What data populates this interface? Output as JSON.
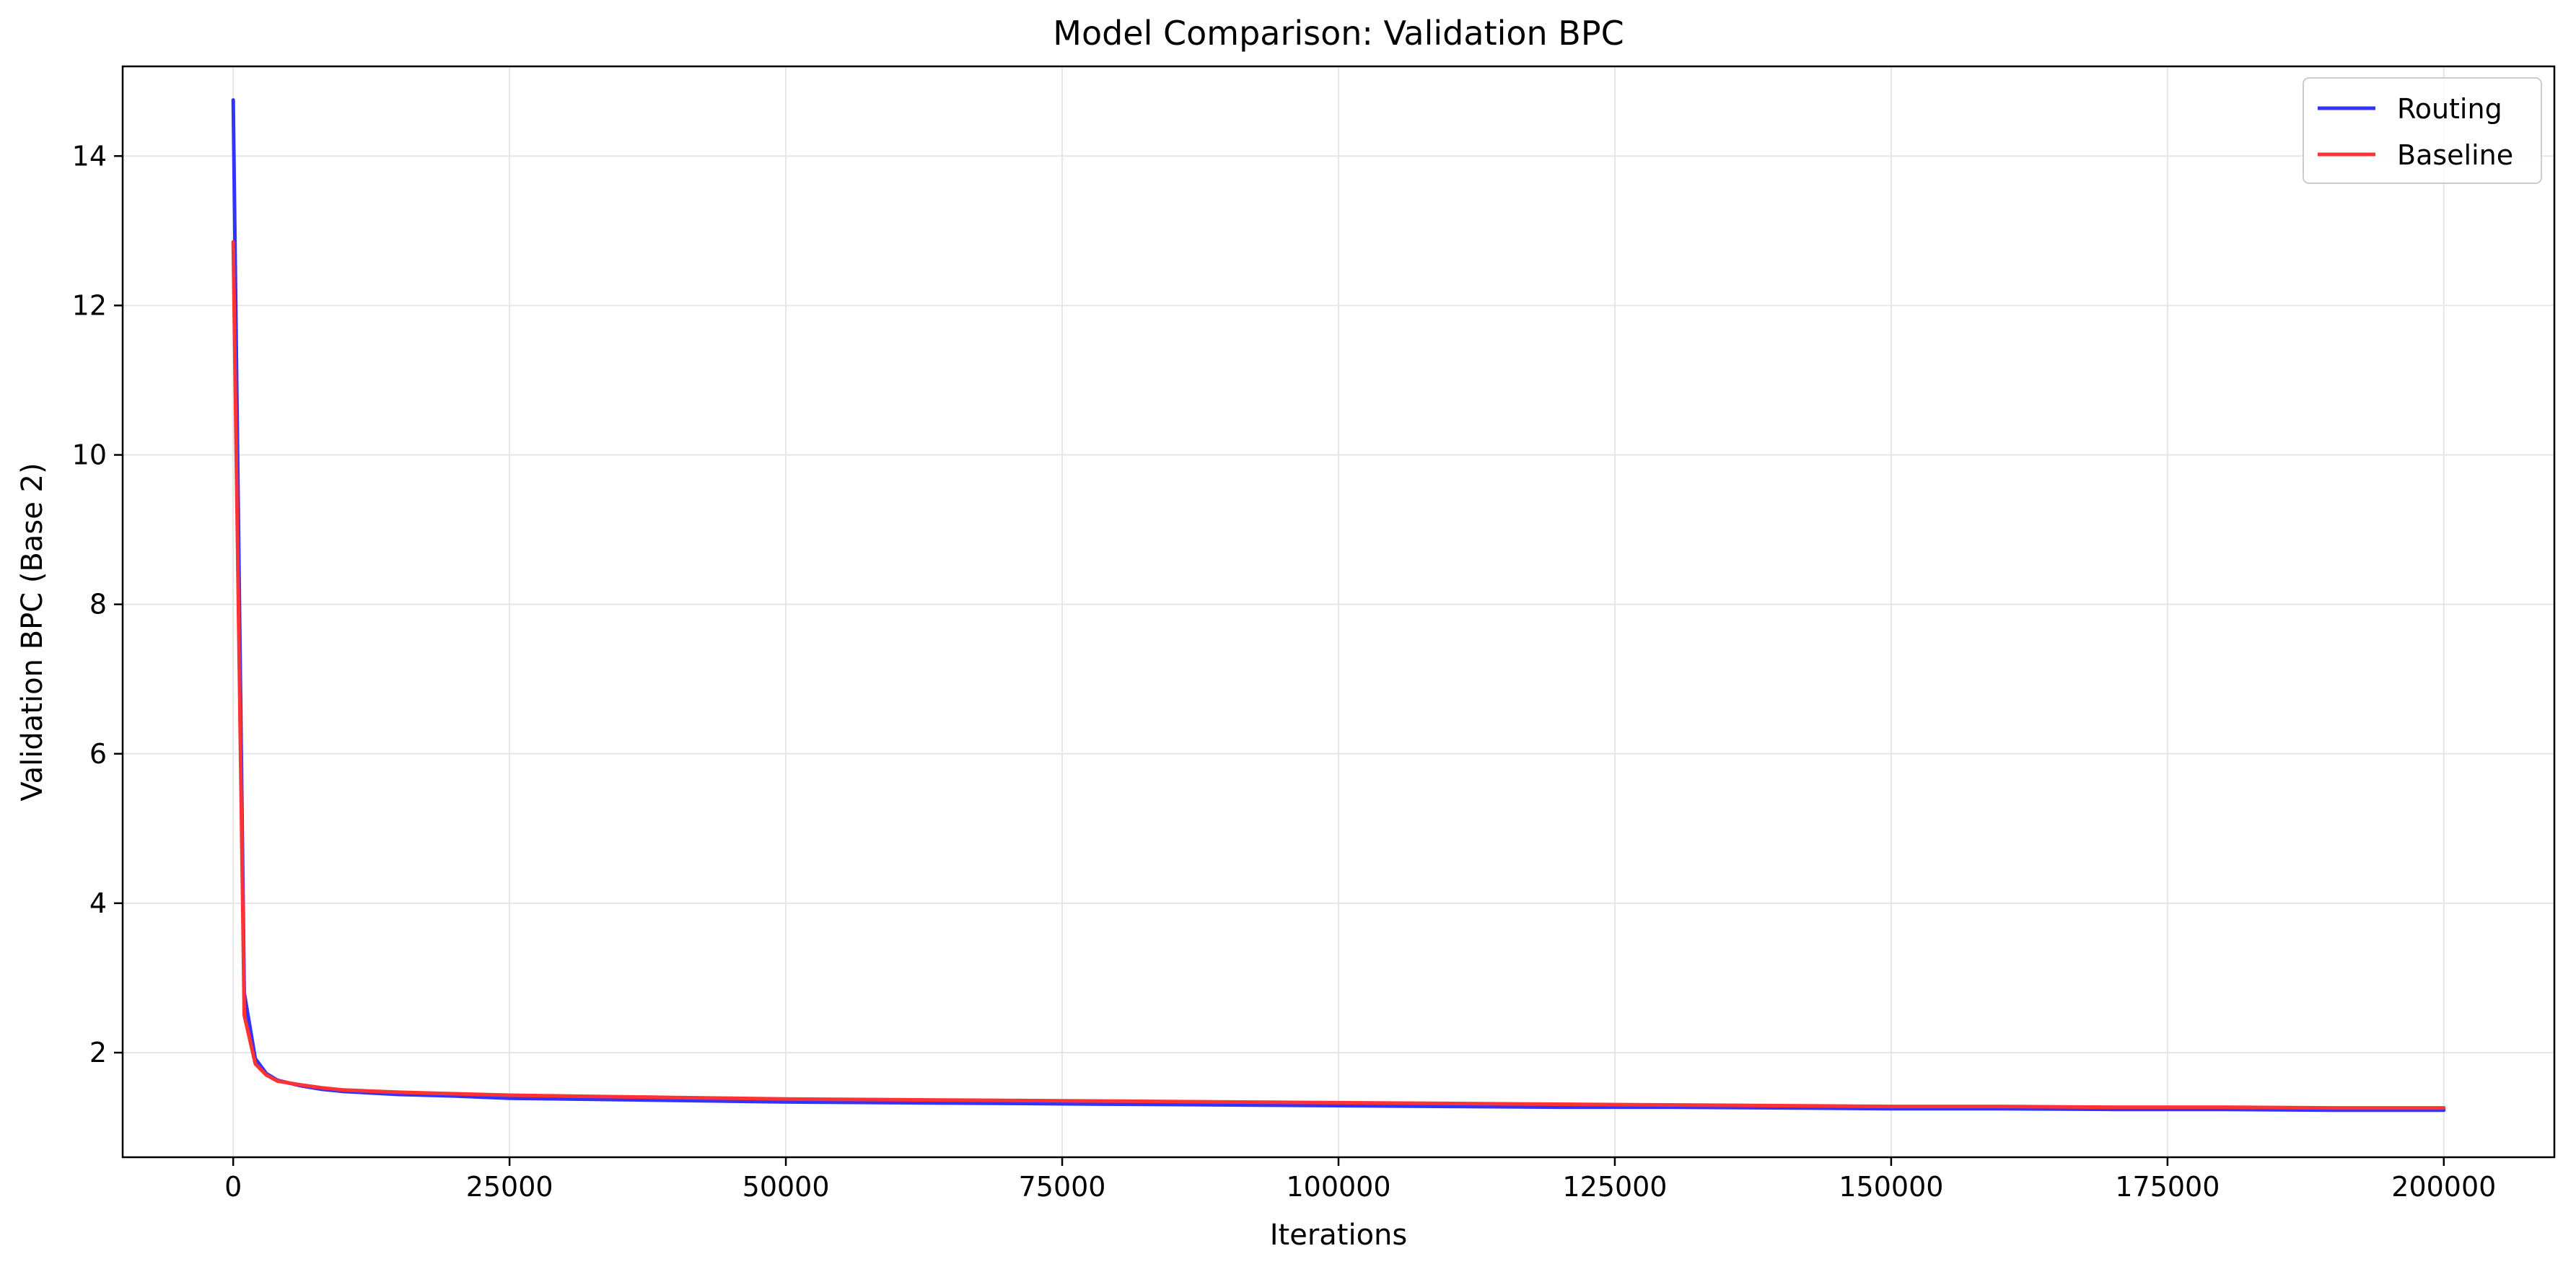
{
  "chart_data": {
    "type": "line",
    "title": "Model Comparison: Validation BPC",
    "xlabel": "Iterations",
    "ylabel": "Validation BPC (Base 2)",
    "xlim": [
      -10000,
      210000
    ],
    "ylim": [
      0.6,
      15.2
    ],
    "xticks": [
      0,
      25000,
      50000,
      75000,
      100000,
      125000,
      150000,
      175000,
      200000
    ],
    "yticks": [
      2,
      4,
      6,
      8,
      10,
      12,
      14
    ],
    "grid": true,
    "legend_position": "top-right",
    "series": [
      {
        "name": "Routing",
        "color": "#3333ff",
        "x": [
          0,
          1000,
          2000,
          3000,
          4000,
          6000,
          8000,
          10000,
          15000,
          20000,
          25000,
          30000,
          40000,
          50000,
          60000,
          70000,
          80000,
          90000,
          100000,
          110000,
          120000,
          130000,
          140000,
          150000,
          160000,
          170000,
          180000,
          190000,
          200000
        ],
        "y": [
          14.75,
          2.8,
          1.92,
          1.72,
          1.63,
          1.56,
          1.51,
          1.48,
          1.44,
          1.42,
          1.39,
          1.38,
          1.36,
          1.34,
          1.33,
          1.32,
          1.31,
          1.3,
          1.29,
          1.28,
          1.27,
          1.27,
          1.26,
          1.25,
          1.25,
          1.24,
          1.24,
          1.23,
          1.23
        ]
      },
      {
        "name": "Baseline",
        "color": "#ff3333",
        "x": [
          0,
          1000,
          2000,
          3000,
          4000,
          6000,
          8000,
          10000,
          15000,
          20000,
          25000,
          30000,
          40000,
          50000,
          60000,
          70000,
          80000,
          90000,
          100000,
          110000,
          120000,
          130000,
          140000,
          150000,
          160000,
          170000,
          180000,
          190000,
          200000
        ],
        "y": [
          12.85,
          2.5,
          1.85,
          1.7,
          1.62,
          1.57,
          1.53,
          1.5,
          1.47,
          1.45,
          1.43,
          1.42,
          1.4,
          1.38,
          1.37,
          1.36,
          1.35,
          1.34,
          1.33,
          1.32,
          1.31,
          1.3,
          1.29,
          1.28,
          1.28,
          1.27,
          1.27,
          1.26,
          1.26
        ]
      }
    ]
  }
}
